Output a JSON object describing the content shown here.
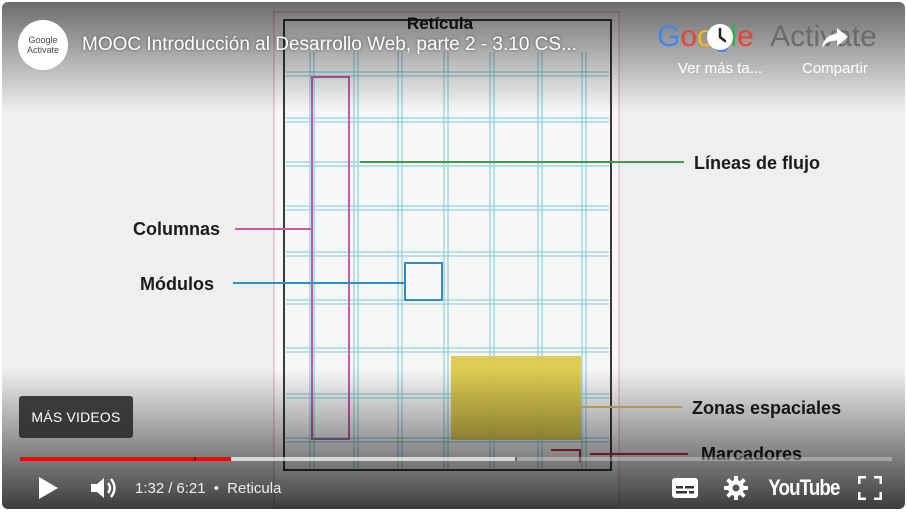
{
  "channel": {
    "avatar_line1": "Google",
    "avatar_line2": "Activate"
  },
  "video": {
    "title": "MOOC Introducción al Desarrollo Web, parte 2 - 3.10 CS..."
  },
  "watermark": {
    "word1": [
      "G",
      "o",
      "o",
      "g",
      "l",
      "e"
    ],
    "word2": "Activate"
  },
  "top_actions": {
    "watch_later_label": "Ver más ta...",
    "share_label": "Compartir"
  },
  "slide": {
    "title": "Retícula",
    "labels": {
      "flow_lines": "Líneas de flujo",
      "columns": "Columnas",
      "modules": "Módulos",
      "spatial_zones": "Zonas espaciales",
      "markers": "Marcadores"
    },
    "colors": {
      "grid": "#8fd1dc",
      "columns": "#c75aa6",
      "flow_lines": "#3f9a4a",
      "modules": "#2a8fc9",
      "spatial_zones": "#dcc843",
      "markers": "#b7303b"
    }
  },
  "more_videos_button": {
    "label": "MÁS VIDEOS"
  },
  "progress": {
    "played_fraction": 0.242,
    "loaded_fraction": 0.57,
    "chapter_marks": [
      0.199,
      0.568
    ]
  },
  "player": {
    "current_time": "1:32",
    "duration": "6:21",
    "chapter": "Reticula",
    "youtube_logo": "YouTube",
    "accent_color": "#ff0000"
  }
}
